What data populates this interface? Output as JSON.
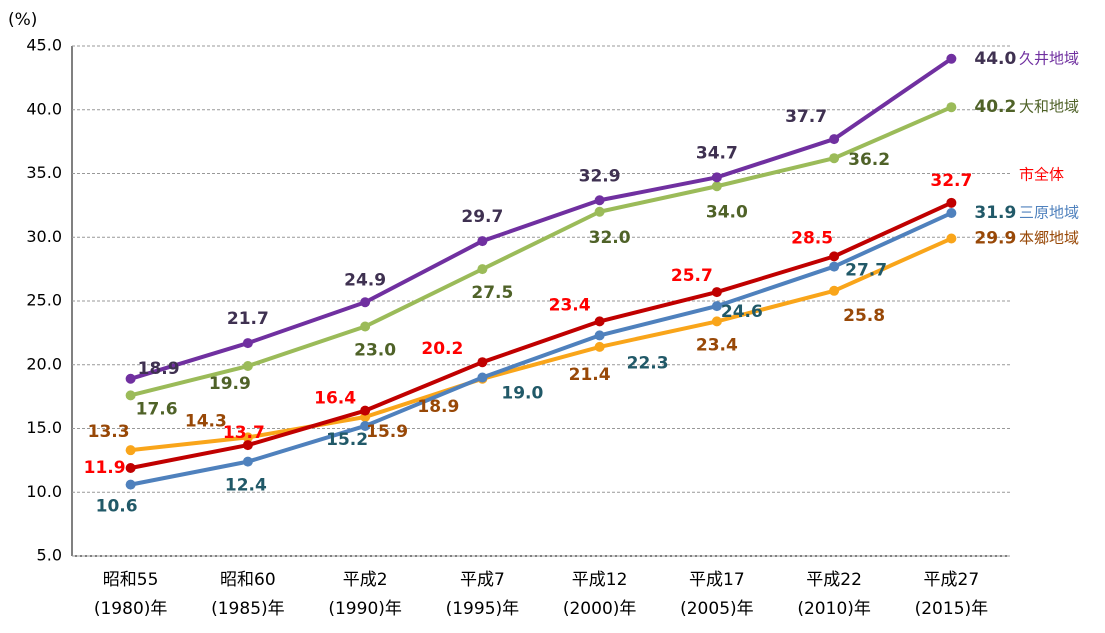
{
  "chart_data": {
    "type": "line",
    "y_label": "(%)",
    "categories": [
      "昭和55\n(1980)年",
      "昭和60\n(1985)年",
      "平成2\n(1990)年",
      "平成7\n(1995)年",
      "平成12\n(2000)年",
      "平成17\n(2005)年",
      "平成22\n(2010)年",
      "平成27\n(2015)年"
    ],
    "ylim": [
      5,
      45
    ],
    "yticks": [
      {
        "value": 5,
        "label": "5.0"
      },
      {
        "value": 10,
        "label": "10.0"
      },
      {
        "value": 15,
        "label": "15.0"
      },
      {
        "value": 20,
        "label": "20.0"
      },
      {
        "value": 25,
        "label": "25.0"
      },
      {
        "value": 30,
        "label": "30.0"
      },
      {
        "value": 35,
        "label": "35.0"
      },
      {
        "value": 40,
        "label": "40.0"
      },
      {
        "value": 45,
        "label": "45.0"
      }
    ],
    "grid": true,
    "series": [
      {
        "name": "久井地域",
        "color": "#7030a0",
        "label_color": "#3f3151",
        "name_color": "#7030a0",
        "values": [
          18.9,
          21.7,
          24.9,
          29.7,
          32.9,
          34.7,
          37.7,
          44.0
        ],
        "value_labels": [
          "18.9",
          "21.7",
          "24.9",
          "29.7",
          "32.9",
          "34.7",
          "37.7",
          "44.0"
        ]
      },
      {
        "name": "大和地域",
        "color": "#9bbb59",
        "label_color": "#4f6228",
        "name_color": "#4f6228",
        "values": [
          17.6,
          19.9,
          23.0,
          27.5,
          32.0,
          34.0,
          36.2,
          40.2
        ],
        "value_labels": [
          "17.6",
          "19.9",
          "23.0",
          "27.5",
          "32.0",
          "34.0",
          "36.2",
          "40.2"
        ]
      },
      {
        "name": "市全体",
        "color": "#c00000",
        "label_color": "#ff0000",
        "name_color": "#ff0000",
        "values": [
          11.9,
          13.7,
          16.4,
          20.2,
          23.4,
          25.7,
          28.5,
          32.7
        ],
        "value_labels": [
          "11.9",
          "13.7",
          "16.4",
          "20.2",
          "23.4",
          "25.7",
          "28.5",
          "32.7"
        ]
      },
      {
        "name": "三原地域",
        "color": "#4f81bd",
        "label_color": "#215968",
        "name_color": "#4f81bd",
        "values": [
          10.6,
          12.4,
          15.2,
          19.0,
          22.3,
          24.6,
          27.7,
          31.9
        ],
        "value_labels": [
          "10.6",
          "12.4",
          "15.2",
          "19.0",
          "22.3",
          "24.6",
          "27.7",
          "31.9"
        ]
      },
      {
        "name": "本郷地域",
        "color": "#f9a51a",
        "label_color": "#984807",
        "name_color": "#984807",
        "values": [
          13.3,
          14.3,
          15.9,
          18.9,
          21.4,
          23.4,
          25.8,
          29.9
        ],
        "value_labels": [
          "13.3",
          "14.3",
          "15.9",
          "18.9",
          "21.4",
          "23.4",
          "25.8",
          "29.9"
        ]
      }
    ]
  }
}
